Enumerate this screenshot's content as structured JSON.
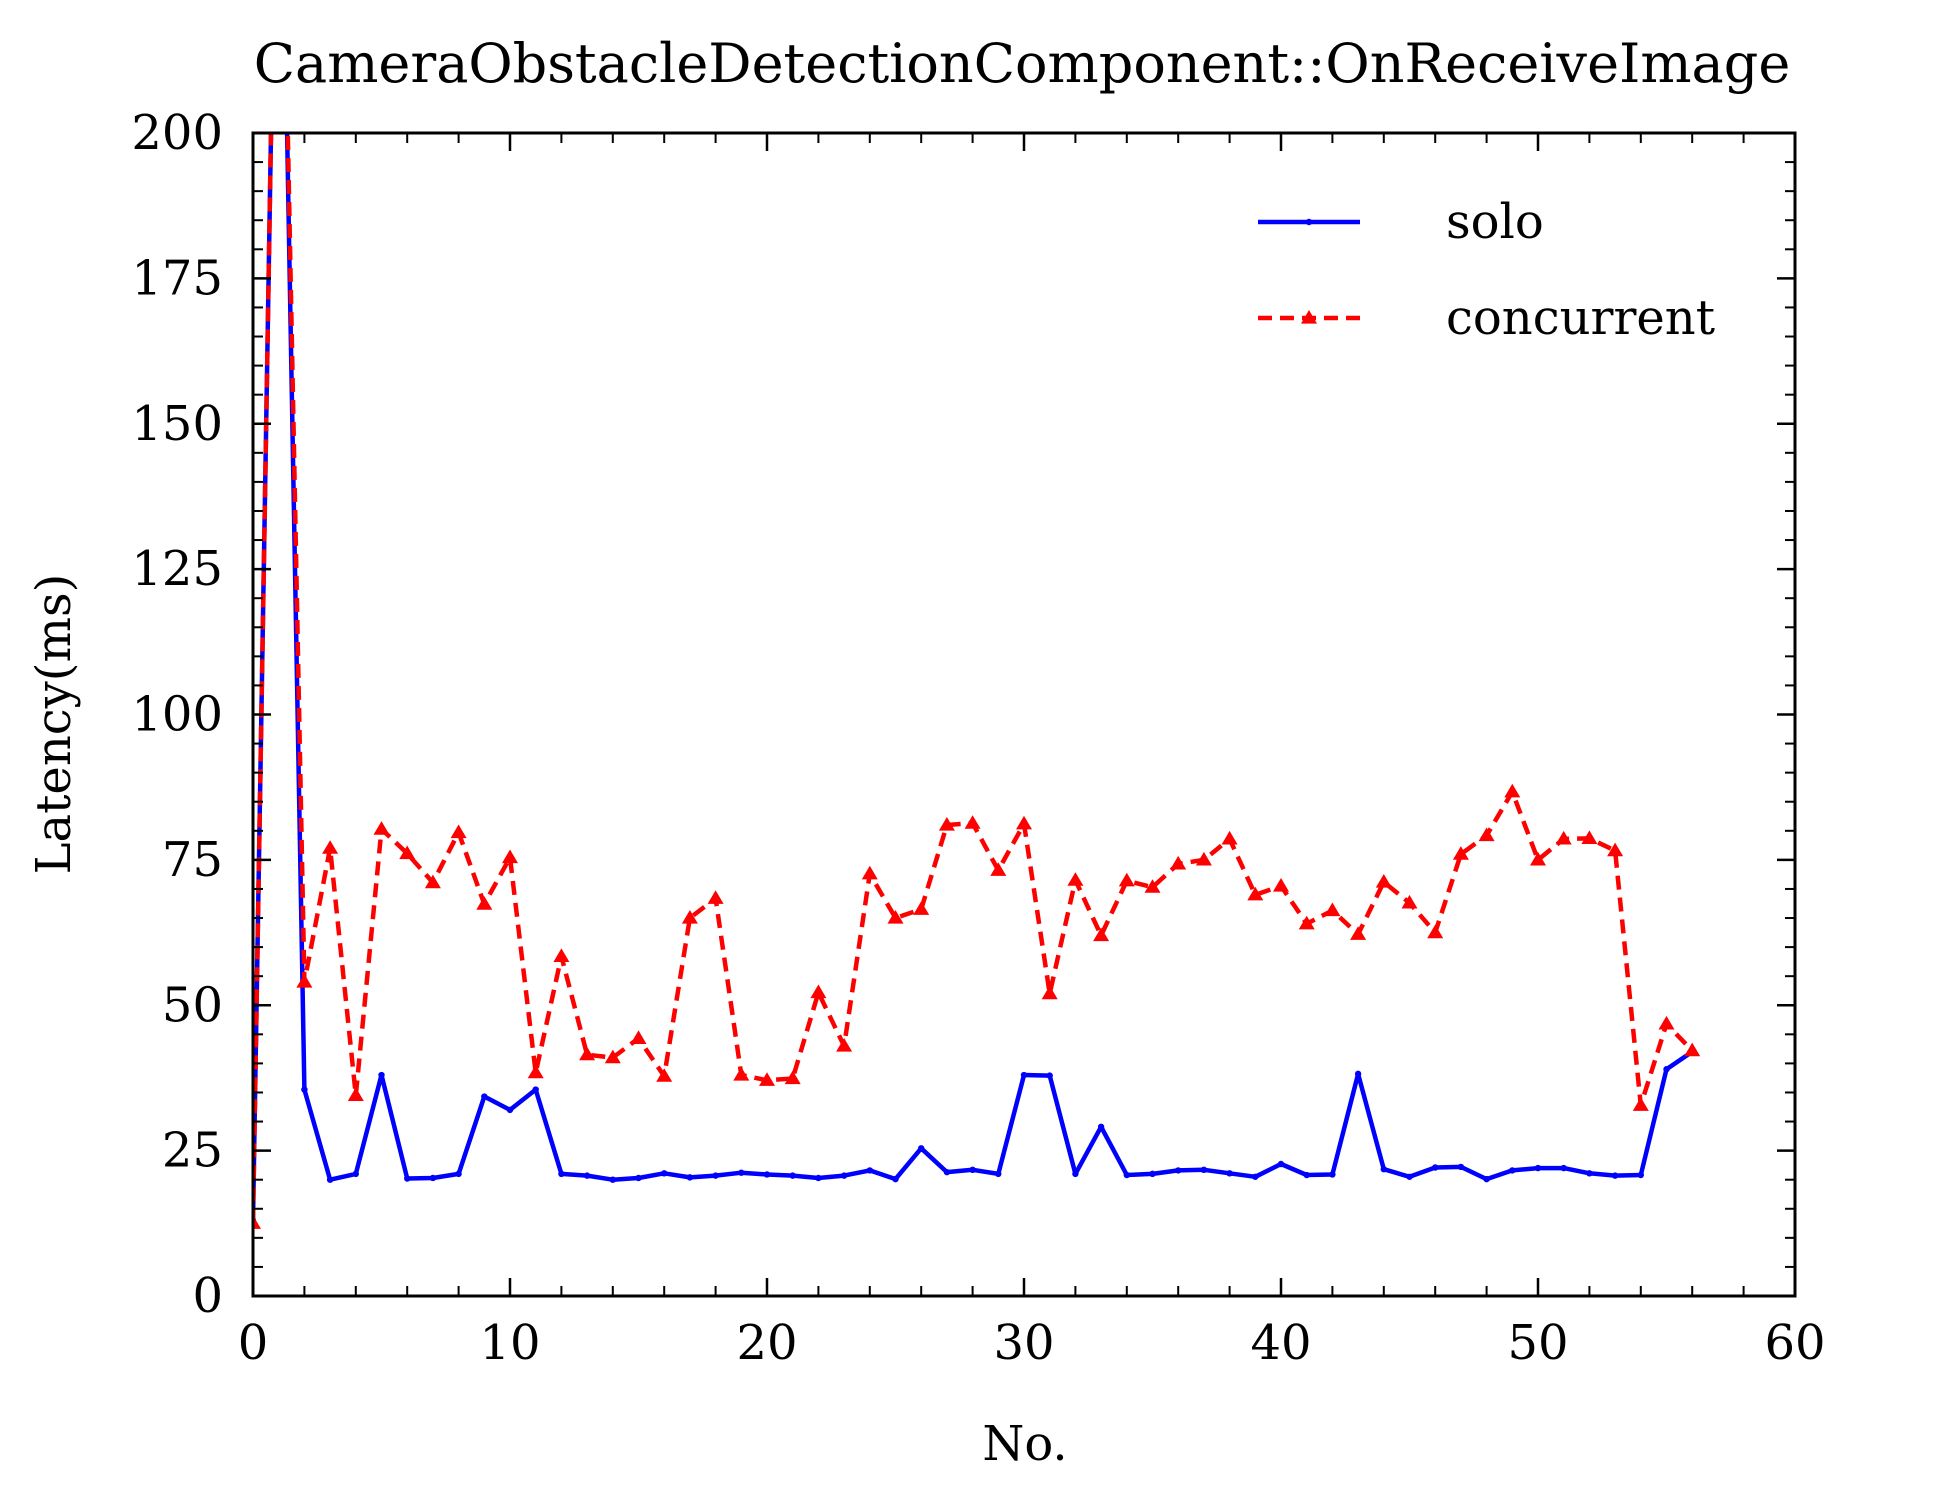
{
  "chart_data": {
    "type": "line",
    "title": "CameraObstacleDetectionComponent::OnReceiveImage",
    "xlabel": "No.",
    "ylabel": "Latency(ms)",
    "xlim": [
      0,
      60
    ],
    "ylim": [
      0,
      200
    ],
    "x_ticks": [
      "0",
      "10",
      "20",
      "30",
      "40",
      "50",
      "60"
    ],
    "y_ticks": [
      "0",
      "25",
      "50",
      "75",
      "100",
      "125",
      "150",
      "175",
      "200"
    ],
    "legend_position": "top-right",
    "series": [
      {
        "name": "solo",
        "color": "#0000ff",
        "line_style": "solid",
        "marker": "point",
        "x": [
          0,
          1,
          2,
          3,
          4,
          5,
          6,
          7,
          8,
          9,
          10,
          11,
          12,
          13,
          14,
          15,
          16,
          17,
          18,
          19,
          20,
          21,
          22,
          23,
          24,
          25,
          26,
          27,
          28,
          29,
          30,
          31,
          32,
          33,
          34,
          35,
          36,
          37,
          38,
          39,
          40,
          41,
          42,
          43,
          44,
          45,
          46,
          47,
          48,
          49,
          50,
          51,
          52,
          53,
          54,
          55,
          56
        ],
        "values": [
          13,
          280,
          35.5,
          20,
          21,
          38,
          20.2,
          20.3,
          21,
          34.3,
          32,
          35.5,
          21,
          20.7,
          20,
          20.3,
          21.1,
          20.4,
          20.7,
          21.2,
          20.9,
          20.7,
          20.3,
          20.7,
          21.6,
          20.1,
          25.4,
          21.3,
          21.7,
          21,
          38,
          37.9,
          21,
          29.1,
          20.8,
          21,
          21.6,
          21.7,
          21.1,
          20.5,
          22.7,
          20.8,
          20.9,
          38.2,
          21.8,
          20.5,
          22.1,
          22.2,
          20.1,
          21.6,
          22,
          22,
          21.1,
          20.7,
          20.8,
          39,
          42
        ]
      },
      {
        "name": "concurrent",
        "color": "#ff0000",
        "line_style": "dashed",
        "marker": "triangle",
        "x": [
          0,
          1,
          2,
          3,
          4,
          5,
          6,
          7,
          8,
          9,
          10,
          11,
          12,
          13,
          14,
          15,
          16,
          17,
          18,
          19,
          20,
          21,
          22,
          23,
          24,
          25,
          26,
          27,
          28,
          29,
          30,
          31,
          32,
          33,
          34,
          35,
          36,
          37,
          38,
          39,
          40,
          41,
          42,
          43,
          44,
          45,
          46,
          47,
          48,
          49,
          50,
          51,
          52,
          53,
          54,
          55,
          56
        ],
        "values": [
          12.5,
          280,
          54,
          77,
          34.5,
          80.3,
          76.1,
          71.1,
          79.7,
          67.4,
          75.4,
          38.4,
          58.4,
          41.5,
          41,
          44.3,
          37.8,
          65,
          68.4,
          38,
          37.1,
          37.4,
          52.2,
          43,
          72.6,
          65,
          66.5,
          81,
          81.3,
          73.2,
          81.2,
          52,
          71.5,
          62,
          71.4,
          70.3,
          74.3,
          75,
          78.6,
          69,
          70.5,
          64,
          66.3,
          62.2,
          71.2,
          67.6,
          62.5,
          76,
          79.2,
          86.7,
          75,
          78.6,
          78.7,
          76.6,
          32.8,
          46.8,
          42.2
        ]
      }
    ]
  }
}
